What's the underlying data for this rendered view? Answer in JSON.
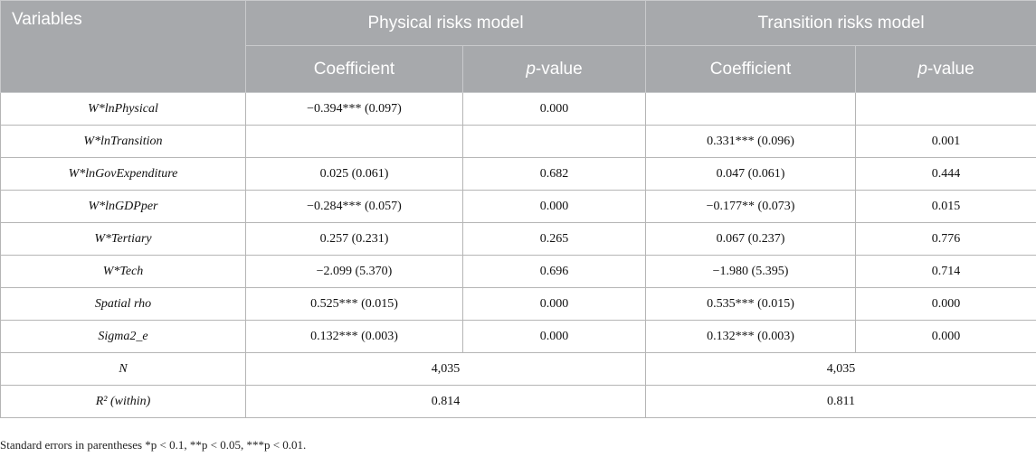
{
  "header": {
    "variables": "Variables",
    "physical": "Physical risks model",
    "transition": "Transition risks model",
    "coefficient": "Coefficient",
    "pvalue_p": "p",
    "pvalue_rest": "-value"
  },
  "rows": [
    {
      "var": "W*lnPhysical",
      "pc": "−0.394*** (0.097)",
      "pp": "0.000",
      "tc": "",
      "tp": ""
    },
    {
      "var": "W*lnTransition",
      "pc": "",
      "pp": "",
      "tc": "0.331*** (0.096)",
      "tp": "0.001"
    },
    {
      "var": "W*lnGovExpenditure",
      "pc": "0.025 (0.061)",
      "pp": "0.682",
      "tc": "0.047 (0.061)",
      "tp": "0.444"
    },
    {
      "var": "W*lnGDPper",
      "pc": "−0.284*** (0.057)",
      "pp": "0.000",
      "tc": "−0.177** (0.073)",
      "tp": "0.015"
    },
    {
      "var": "W*Tertiary",
      "pc": "0.257 (0.231)",
      "pp": "0.265",
      "tc": "0.067 (0.237)",
      "tp": "0.776"
    },
    {
      "var": "W*Tech",
      "pc": "−2.099 (5.370)",
      "pp": "0.696",
      "tc": "−1.980 (5.395)",
      "tp": "0.714"
    },
    {
      "var": "Spatial rho",
      "pc": "0.525*** (0.015)",
      "pp": "0.000",
      "tc": "0.535*** (0.015)",
      "tp": "0.000"
    },
    {
      "var": "Sigma2_e",
      "pc": "0.132*** (0.003)",
      "pp": "0.000",
      "tc": "0.132*** (0.003)",
      "tp": "0.000"
    }
  ],
  "summary": {
    "n_label": "N",
    "n_physical": "4,035",
    "n_transition": "4,035",
    "r2_label": "R² (within)",
    "r2_physical": "0.814",
    "r2_transition": "0.811"
  },
  "note": "Standard errors in parentheses *p < 0.1, **p < 0.05, ***p < 0.01."
}
